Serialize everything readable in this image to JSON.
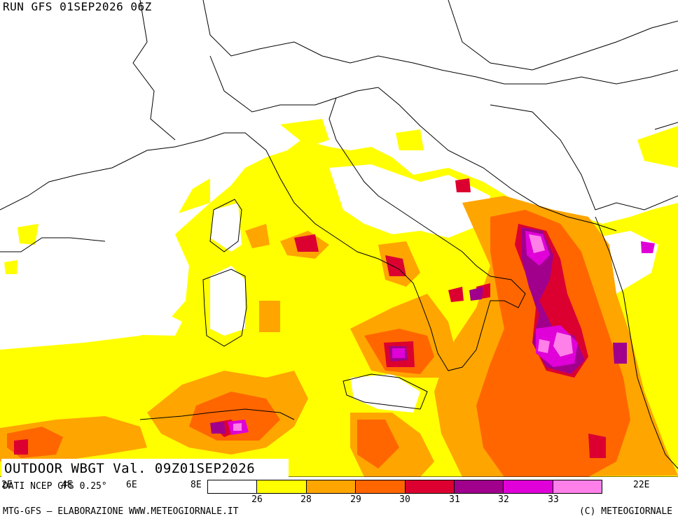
{
  "run_title": "RUN GFS 01SEP2026 06Z",
  "main_title": "OUTDOOR WBGT Val. 09Z01SEP2026",
  "source": "DATI NCEP GFS 0.25°",
  "footer_left": "MTG-GFS – ELABORAZIONE WWW.METEOGIORNALE.IT",
  "footer_right": "(C) METEOGIORNALE",
  "longitude_labels": [
    "2E",
    "4E",
    "6E",
    "8E",
    "22E"
  ],
  "legend": {
    "colors": [
      "#ffffff",
      "#ffff00",
      "#ffa500",
      "#ff6600",
      "#dc0030",
      "#a0008c",
      "#e000d8",
      "#ff80e8"
    ],
    "ticks": [
      "26",
      "28",
      "29",
      "30",
      "31",
      "32",
      "33"
    ]
  },
  "colors": {
    "sea_base": "#ffff00",
    "land": "#ffffff",
    "border_lines": "#000000"
  }
}
